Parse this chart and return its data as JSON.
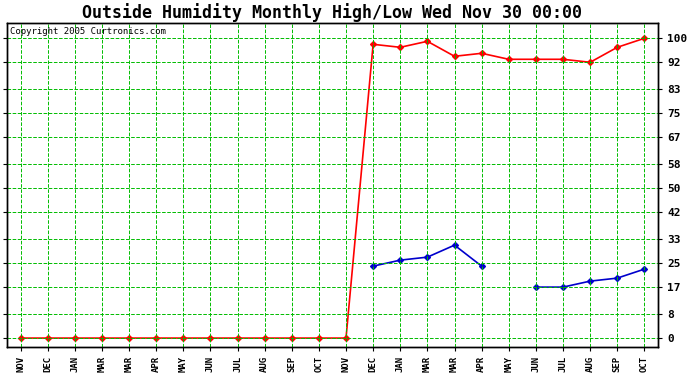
{
  "title": "Outside Humidity Monthly High/Low Wed Nov 30 00:00",
  "copyright": "Copyright 2005 Curtronics.com",
  "x_labels": [
    "NOV",
    "DEC",
    "JAN",
    "MAR",
    "MAR",
    "APR",
    "MAY",
    "JUN",
    "JUL",
    "AUG",
    "SEP",
    "OCT",
    "NOV",
    "DEC",
    "JAN",
    "MAR",
    "MAR",
    "APR",
    "MAY",
    "JUN",
    "JUL",
    "AUG",
    "SEP",
    "OCT"
  ],
  "high_color": "#ff0000",
  "low_color": "#0000cc",
  "background_color": "#ffffff",
  "grid_color": "#00bb00",
  "yticks": [
    0,
    8,
    17,
    25,
    33,
    42,
    50,
    58,
    67,
    75,
    83,
    92,
    100
  ],
  "ylim": [
    -3,
    105
  ],
  "xlim": [
    -0.5,
    23.5
  ],
  "title_fontsize": 12,
  "marker": "D",
  "marker_size": 3,
  "high_y": [
    0,
    0,
    0,
    0,
    0,
    0,
    0,
    0,
    0,
    0,
    0,
    0,
    0,
    98,
    97,
    99,
    94,
    95,
    93,
    93,
    93,
    92,
    97,
    100
  ],
  "low_y": [
    null,
    null,
    null,
    null,
    null,
    null,
    null,
    null,
    null,
    null,
    null,
    null,
    null,
    24,
    26,
    27,
    31,
    24,
    null,
    17,
    17,
    19,
    20,
    23
  ]
}
